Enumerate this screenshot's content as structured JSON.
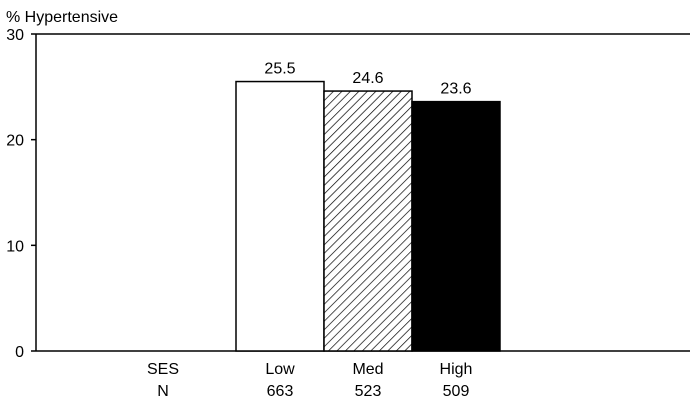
{
  "chart_data": {
    "type": "bar",
    "ylabel": "% Hypertensive",
    "ylim": [
      0,
      30
    ],
    "yticks": [
      "0",
      "10",
      "20",
      "30"
    ],
    "row_labels": {
      "categories": "SES",
      "counts": "N"
    },
    "categories": [
      "Low",
      "Med",
      "High"
    ],
    "counts": [
      "663",
      "523",
      "509"
    ],
    "values": [
      25.5,
      24.6,
      23.6
    ],
    "value_labels": [
      "25.5",
      "24.6",
      "23.6"
    ],
    "bar_fills": [
      "white",
      "hatched",
      "black"
    ],
    "grid": false,
    "legend": "none",
    "colors": {
      "outline": "#000000",
      "background": "#ffffff",
      "solid": "#000000"
    }
  }
}
